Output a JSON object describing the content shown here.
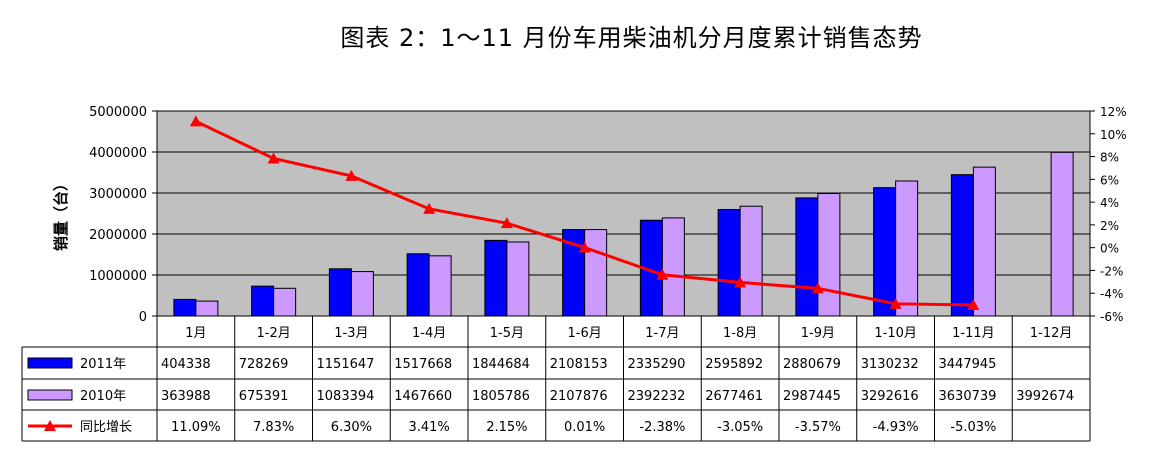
{
  "chart_data": {
    "type": "bar",
    "title": "图表 2：1～11 月份车用柴油机分月度累计销售态势",
    "ylabel": "销量（台）",
    "ylim": [
      0,
      5000000
    ],
    "y_ticks": [
      "0",
      "1000000",
      "2000000",
      "3000000",
      "4000000",
      "5000000"
    ],
    "y2lim": [
      -6,
      12
    ],
    "y2_ticks": [
      "-6%",
      "-4%",
      "-2%",
      "0%",
      "2%",
      "4%",
      "6%",
      "8%",
      "10%",
      "12%"
    ],
    "categories": [
      "1月",
      "1-2月",
      "1-3月",
      "1-4月",
      "1-5月",
      "1-6月",
      "1-7月",
      "1-8月",
      "1-9月",
      "1-10月",
      "1-11月",
      "1-12月"
    ],
    "grid": true,
    "legend": "data-table",
    "colors": {
      "plot_bg": "#c0c0c0",
      "bar_2011": "#0000ff",
      "bar_2010": "#cc99ff",
      "line": "#ff0000"
    },
    "series": [
      {
        "name": "2011年",
        "kind": "bar",
        "axis": "left",
        "values": [
          404338,
          728269,
          1151647,
          1517668,
          1844684,
          2108153,
          2335290,
          2595892,
          2880679,
          3130232,
          3447945,
          null
        ],
        "labels": [
          "404338",
          "728269",
          "1151647",
          "1517668",
          "1844684",
          "2108153",
          "2335290",
          "2595892",
          "2880679",
          "3130232",
          "3447945",
          ""
        ]
      },
      {
        "name": "2010年",
        "kind": "bar",
        "axis": "left",
        "values": [
          363988,
          675391,
          1083394,
          1467660,
          1805786,
          2107876,
          2392232,
          2677461,
          2987445,
          3292616,
          3630739,
          3992674
        ],
        "labels": [
          "363988",
          "675391",
          "1083394",
          "1467660",
          "1805786",
          "2107876",
          "2392232",
          "2677461",
          "2987445",
          "3292616",
          "3630739",
          "3992674"
        ]
      },
      {
        "name": "同比增长",
        "kind": "line",
        "axis": "right",
        "values": [
          11.09,
          7.83,
          6.3,
          3.41,
          2.15,
          0.01,
          -2.38,
          -3.05,
          -3.57,
          -4.93,
          -5.03,
          null
        ],
        "labels": [
          "11.09%",
          "7.83%",
          "6.30%",
          "3.41%",
          "2.15%",
          "0.01%",
          "-2.38%",
          "-3.05%",
          "-3.57%",
          "-4.93%",
          "-5.03%",
          ""
        ]
      }
    ]
  }
}
